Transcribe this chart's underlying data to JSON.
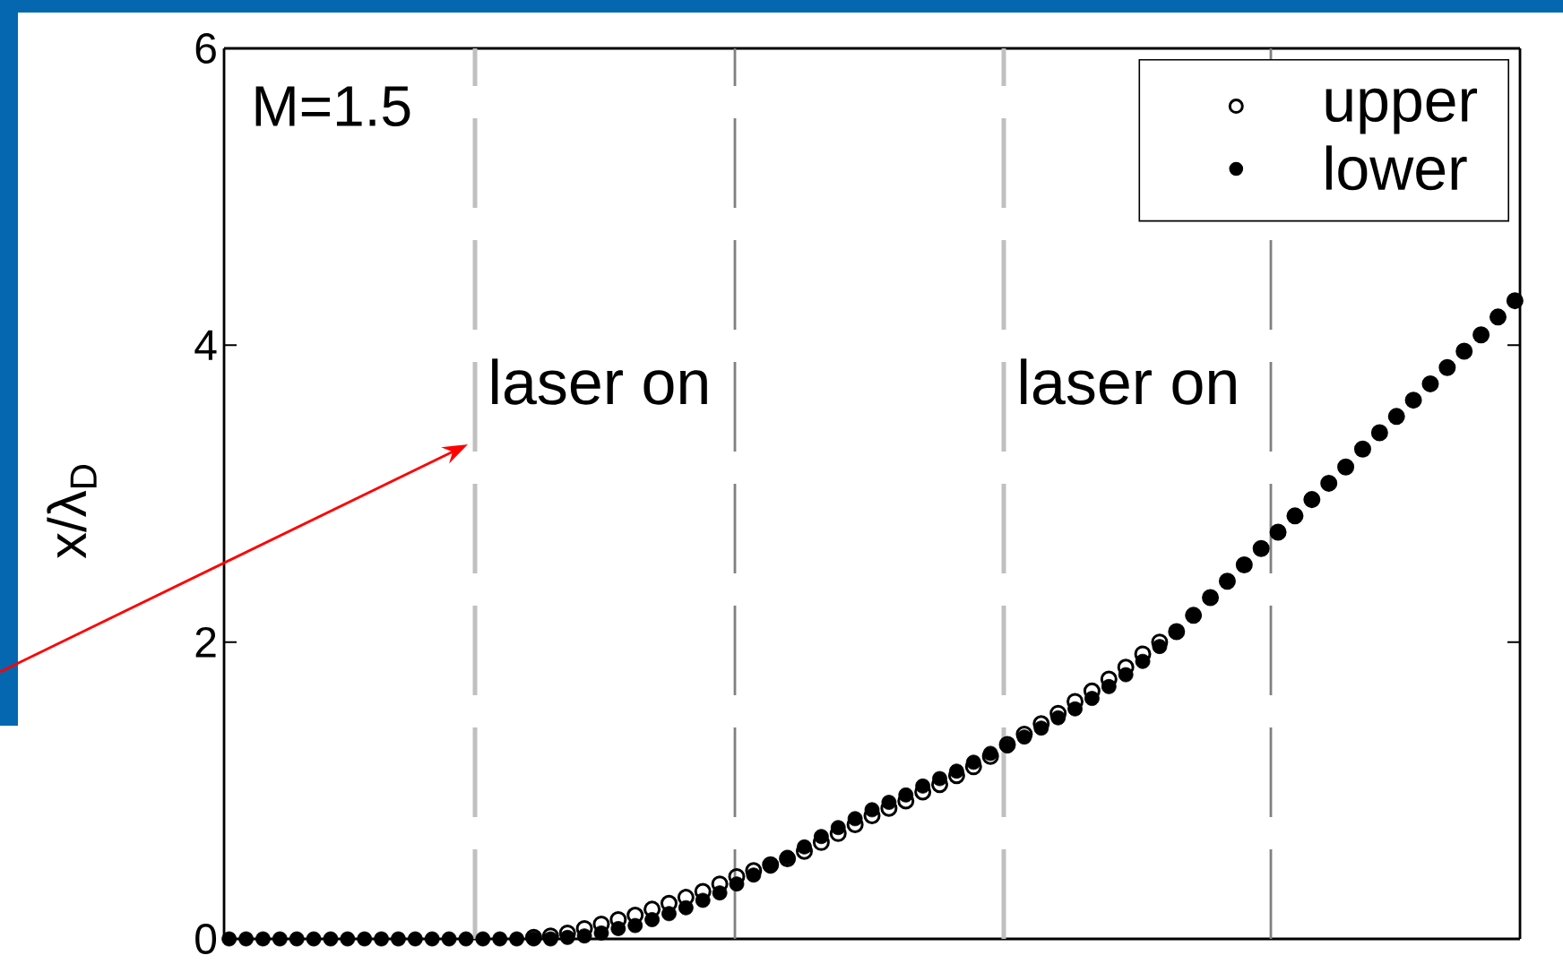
{
  "chart_data": {
    "type": "scatter",
    "ylabel": "x/λ$_{D}$",
    "annotations": [
      "M=1.5",
      "laser on",
      "laser on"
    ],
    "categories": [
      null,
      null,
      null,
      null,
      null,
      null,
      null,
      null,
      null,
      null,
      null,
      null,
      null,
      null,
      null,
      null,
      null,
      null,
      null,
      null,
      null,
      null,
      null,
      null,
      null,
      null,
      null,
      null,
      null,
      null,
      null,
      null,
      null,
      null,
      null,
      null,
      null,
      null,
      null,
      null,
      null,
      null,
      null,
      null,
      null,
      null,
      null,
      null,
      null,
      null,
      null,
      null,
      null,
      null,
      null,
      null,
      null,
      null,
      null,
      null,
      null,
      null,
      null,
      null,
      null,
      null,
      null,
      null,
      null,
      null,
      null,
      null,
      null,
      null,
      null,
      null,
      null
    ],
    "ylim": [
      0,
      6
    ],
    "yticks": [
      0,
      2,
      4,
      6
    ],
    "tick_labels": "y",
    "marker": "circle",
    "legend": "top right",
    "series": [
      {
        "name": "upper",
        "color": "#000000",
        "values": [
          null,
          null,
          null,
          null,
          null,
          null,
          null,
          null,
          null,
          null,
          null,
          null,
          null,
          null,
          null,
          null,
          null,
          null,
          0.01,
          0.02,
          0.04,
          0.07,
          0.1,
          0.13,
          0.16,
          0.2,
          0.24,
          0.28,
          0.32,
          0.37,
          0.42,
          0.46,
          0.5,
          0.54,
          0.59,
          0.65,
          0.71,
          0.77,
          0.83,
          0.88,
          0.93,
          0.99,
          1.04,
          1.1,
          1.16,
          1.23,
          1.31,
          1.38,
          1.45,
          1.52,
          1.6,
          1.67,
          1.75,
          1.83,
          1.92,
          2.0,
          2.07,
          2.18,
          2.3,
          2.41,
          2.52,
          2.63,
          2.74,
          2.85,
          2.96,
          3.07,
          3.18,
          3.3,
          3.41,
          3.52,
          3.63,
          3.74,
          3.85,
          3.96,
          4.07,
          4.19,
          4.3
        ]
      },
      {
        "name": "lower",
        "color": "#000000",
        "values": [
          0,
          0,
          0,
          0,
          0,
          0,
          0,
          0,
          0,
          0,
          0,
          0,
          0,
          0,
          0,
          0,
          0,
          0,
          0,
          0,
          0.01,
          0.02,
          0.04,
          0.07,
          0.09,
          0.13,
          0.17,
          0.21,
          0.26,
          0.31,
          0.37,
          0.43,
          0.49,
          0.55,
          0.62,
          0.69,
          0.75,
          0.81,
          0.87,
          0.92,
          0.97,
          1.03,
          1.08,
          1.13,
          1.19,
          1.25,
          1.3,
          1.36,
          1.42,
          1.49,
          1.55,
          1.62,
          1.7,
          1.78,
          1.87,
          1.97,
          2.07,
          2.18,
          2.3,
          2.41,
          2.52,
          2.63,
          2.74,
          2.85,
          2.96,
          3.07,
          3.18,
          3.3,
          3.41,
          3.52,
          3.63,
          3.74,
          3.85,
          3.96,
          4.07,
          4.19,
          4.3
        ]
      }
    ]
  }
}
